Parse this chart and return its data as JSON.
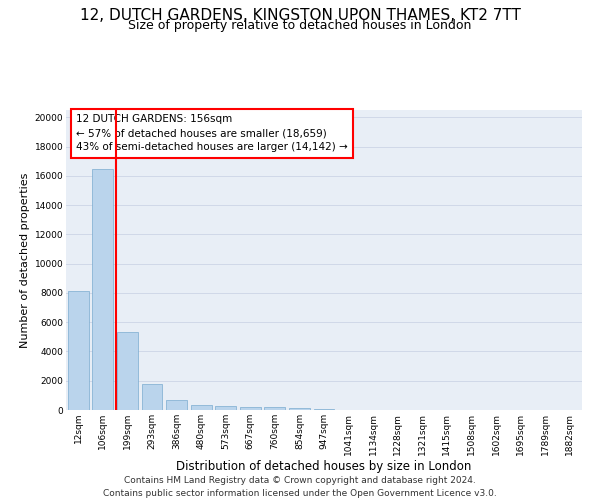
{
  "title": "12, DUTCH GARDENS, KINGSTON UPON THAMES, KT2 7TT",
  "subtitle": "Size of property relative to detached houses in London",
  "xlabel": "Distribution of detached houses by size in London",
  "ylabel": "Number of detached properties",
  "footer_line1": "Contains HM Land Registry data © Crown copyright and database right 2024.",
  "footer_line2": "Contains public sector information licensed under the Open Government Licence v3.0.",
  "bin_labels": [
    "12sqm",
    "106sqm",
    "199sqm",
    "293sqm",
    "386sqm",
    "480sqm",
    "573sqm",
    "667sqm",
    "760sqm",
    "854sqm",
    "947sqm",
    "1041sqm",
    "1134sqm",
    "1228sqm",
    "1321sqm",
    "1415sqm",
    "1508sqm",
    "1602sqm",
    "1695sqm",
    "1789sqm",
    "1882sqm"
  ],
  "bar_values": [
    8100,
    16500,
    5300,
    1800,
    650,
    350,
    270,
    200,
    200,
    170,
    100,
    0,
    0,
    0,
    0,
    0,
    0,
    0,
    0,
    0,
    0
  ],
  "bar_color": "#bad4ec",
  "bar_edge_color": "#7aabcf",
  "grid_color": "#d0d8e8",
  "background_color": "#e8eef6",
  "annotation_text": "12 DUTCH GARDENS: 156sqm\n← 57% of detached houses are smaller (18,659)\n43% of semi-detached houses are larger (14,142) →",
  "property_size_sqm": 156,
  "ylim_max": 20500,
  "yticks": [
    0,
    2000,
    4000,
    6000,
    8000,
    10000,
    12000,
    14000,
    16000,
    18000,
    20000
  ],
  "title_fontsize": 11,
  "subtitle_fontsize": 9,
  "annot_fontsize": 7.5,
  "ylabel_fontsize": 8,
  "xlabel_fontsize": 8.5,
  "footer_fontsize": 6.5,
  "tick_fontsize": 6.5
}
